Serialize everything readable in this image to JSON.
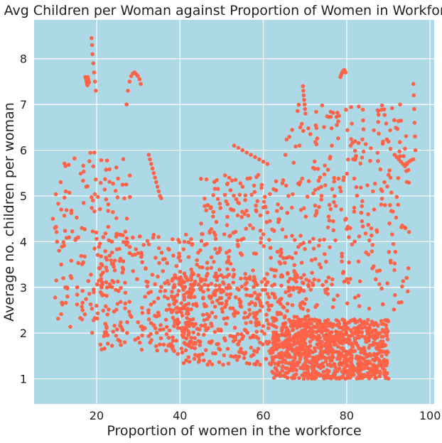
{
  "chart_data": {
    "type": "scatter",
    "title": "Avg Children per Woman against Proportion of Women in Workforce",
    "xlabel": "Proportion of women in the workforce",
    "ylabel": "Average no. children per woman",
    "xlim": [
      5,
      101
    ],
    "ylim": [
      0.45,
      8.85
    ],
    "xticks": [
      20,
      40,
      60,
      80,
      100
    ],
    "yticks": [
      1,
      2,
      3,
      4,
      5,
      6,
      7,
      8
    ],
    "grid": true,
    "legend": "none",
    "colors": {
      "plot_bg": "#add8e6",
      "grid": "#ffffff",
      "marker": "#ff6347"
    },
    "clusters": [
      {
        "x_range": [
          62,
          90
        ],
        "y_range": [
          1.0,
          2.3
        ],
        "count": 900
      },
      {
        "x_range": [
          38,
          72
        ],
        "y_range": [
          1.3,
          3.3
        ],
        "count": 450
      },
      {
        "x_range": [
          20,
          45
        ],
        "y_range": [
          1.6,
          4.2
        ],
        "count": 260
      },
      {
        "x_range": [
          10,
          28
        ],
        "y_range": [
          2.0,
          6.0
        ],
        "count": 160
      },
      {
        "x_range": [
          45,
          65
        ],
        "y_range": [
          2.5,
          5.5
        ],
        "count": 200
      },
      {
        "x_range": [
          65,
          95
        ],
        "y_range": [
          2.5,
          7.0
        ],
        "count": 320
      }
    ],
    "series": [
      {
        "x": [
          18.8,
          18.9,
          19.0,
          19.2,
          19.4,
          19.6,
          19.8
        ],
        "y": [
          8.45,
          8.3,
          8.1,
          7.9,
          7.7,
          7.5,
          7.3
        ]
      },
      {
        "x": [
          17.3,
          17.4,
          17.5,
          17.6,
          17.7,
          17.8,
          17.9,
          18.0,
          18.1,
          18.2
        ],
        "y": [
          7.6,
          7.58,
          7.55,
          7.5,
          7.45,
          7.42,
          7.6,
          7.55,
          7.5,
          7.48
        ]
      },
      {
        "x": [
          27.2,
          27.5,
          27.9,
          28.3,
          28.7,
          29.1,
          29.5,
          29.9,
          30.3,
          30.6
        ],
        "y": [
          7.0,
          7.3,
          7.5,
          7.62,
          7.68,
          7.7,
          7.66,
          7.62,
          7.55,
          7.45
        ]
      },
      {
        "x": [
          32.5,
          32.8,
          33.1,
          33.4,
          33.7,
          34.0,
          34.3,
          34.6,
          34.9,
          35.2,
          35.5
        ],
        "y": [
          5.9,
          5.8,
          5.7,
          5.6,
          5.5,
          5.4,
          5.3,
          5.2,
          5.1,
          5.0,
          4.95
        ]
      },
      {
        "x": [
          53.0,
          54.0,
          55.0,
          56.0,
          57.0,
          58.0,
          59.0,
          60.0,
          61.0
        ],
        "y": [
          6.1,
          6.05,
          6.0,
          5.95,
          5.9,
          5.85,
          5.8,
          5.75,
          5.7
        ]
      },
      {
        "x": [
          78.5,
          78.7,
          78.9,
          79.1,
          79.3,
          79.5,
          79.7
        ],
        "y": [
          7.6,
          7.65,
          7.7,
          7.72,
          7.75,
          7.75,
          7.7
        ]
      },
      {
        "x": [
          69.5,
          69.6,
          69.7,
          69.8,
          69.9,
          70.0,
          70.1
        ],
        "y": [
          7.4,
          7.3,
          7.2,
          7.1,
          7.0,
          6.9,
          6.8
        ]
      },
      {
        "x": [
          96.0,
          96.1,
          96.2,
          96.3,
          96.4,
          96.5
        ],
        "y": [
          7.45,
          7.2,
          6.9,
          6.6,
          6.3,
          6.0
        ]
      },
      {
        "x": [
          91.5,
          92.0,
          92.5,
          93.0,
          93.5,
          94.0,
          94.5,
          95.0,
          95.5,
          96.0
        ],
        "y": [
          5.9,
          5.85,
          5.8,
          5.75,
          5.7,
          5.65,
          5.7,
          5.75,
          5.78,
          5.8
        ]
      },
      {
        "x": [
          9.5,
          10.0,
          10.5,
          11.0,
          11.5,
          12.0,
          12.5,
          13.0
        ],
        "y": [
          4.5,
          4.3,
          4.0,
          3.8,
          3.5,
          3.2,
          3.0,
          2.8
        ]
      }
    ]
  }
}
